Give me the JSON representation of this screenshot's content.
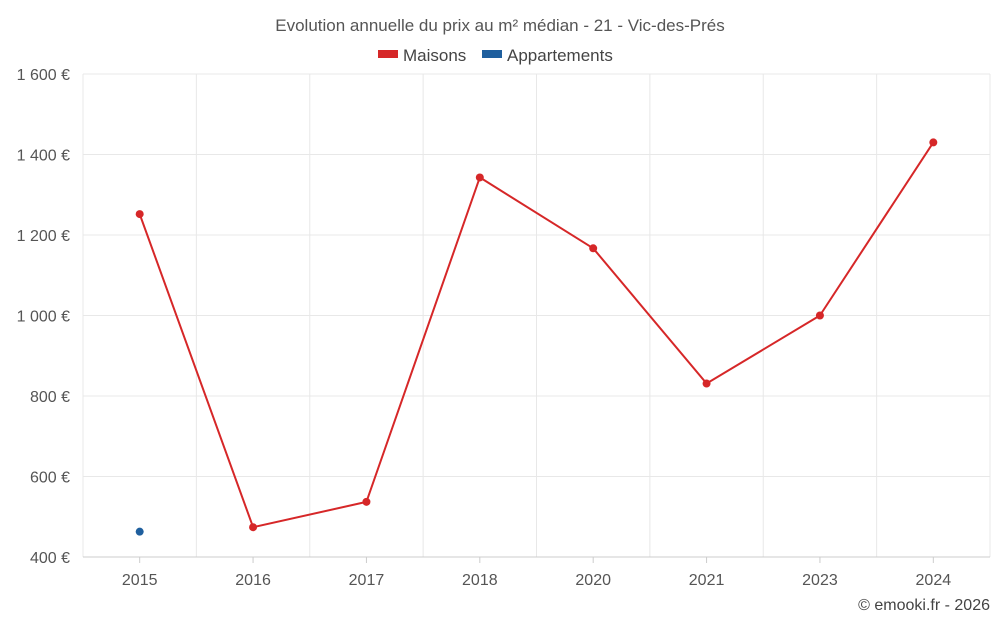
{
  "chart_data": {
    "type": "line",
    "title": "Evolution annuelle du prix au m² médian - 21 - Vic-des-Prés",
    "categories": [
      "2015",
      "2016",
      "2017",
      "2018",
      "2020",
      "2021",
      "2023",
      "2024"
    ],
    "series": [
      {
        "name": "Maisons",
        "color": "#d62728",
        "values": [
          1252,
          474,
          537,
          1343,
          1167,
          831,
          1000,
          1430
        ]
      },
      {
        "name": "Appartements",
        "color": "#1f5f9e",
        "values": [
          463,
          null,
          null,
          null,
          null,
          null,
          null,
          null
        ]
      }
    ],
    "y_ticks": [
      400,
      600,
      800,
      1000,
      1200,
      1400,
      1600
    ],
    "y_tick_labels": [
      "400 €",
      "600 €",
      "800 €",
      "1 000 €",
      "1 200 €",
      "1 400 €",
      "1 600 €"
    ],
    "ylim": [
      400,
      1600
    ],
    "xlabel": "",
    "ylabel": "",
    "grid": true,
    "legend_position": "top-center"
  },
  "footer": {
    "credit": "© emooki.fr - 2026"
  }
}
